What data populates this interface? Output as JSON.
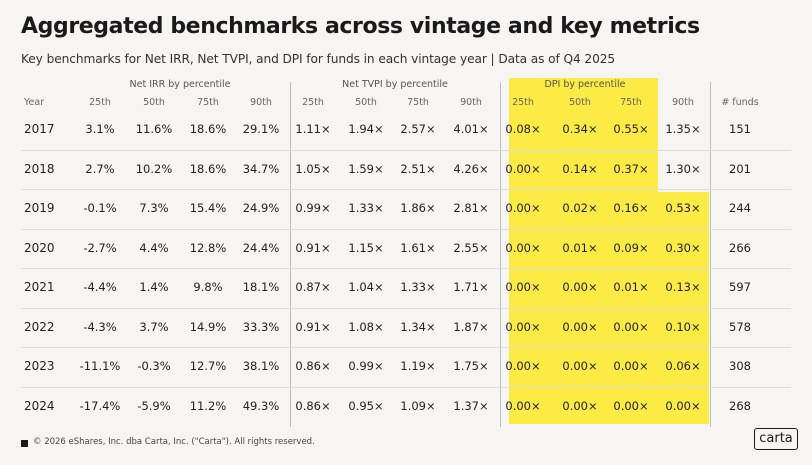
{
  "title": "Aggregated benchmarks across vintage and key metrics",
  "subtitle": "Key benchmarks for Net IRR, Net TVPI, and DPI for funds in each vintage year | Data as of Q4 2025",
  "groups": {
    "irr": "Net IRR by percentile",
    "tvpi": "Net TVPI by percentile",
    "dpi": "DPI by percentile"
  },
  "headers": [
    "Year",
    "25th",
    "50th",
    "75th",
    "90th",
    "25th",
    "50th",
    "75th",
    "90th",
    "25th",
    "50th",
    "75th",
    "90th",
    "# funds"
  ],
  "rows": [
    [
      "2017",
      "3.1%",
      "11.6%",
      "18.6%",
      "29.1%",
      "1.11×",
      "1.94×",
      "2.57×",
      "4.01×",
      "0.08×",
      "0.34×",
      "0.55×",
      "1.35×",
      "151"
    ],
    [
      "2018",
      "2.7%",
      "10.2%",
      "18.6%",
      "34.7%",
      "1.05×",
      "1.59×",
      "2.51×",
      "4.26×",
      "0.00×",
      "0.14×",
      "0.37×",
      "1.30×",
      "201"
    ],
    [
      "2019",
      "-0.1%",
      "7.3%",
      "15.4%",
      "24.9%",
      "0.99×",
      "1.33×",
      "1.86×",
      "2.81×",
      "0.00×",
      "0.02×",
      "0.16×",
      "0.53×",
      "244"
    ],
    [
      "2020",
      "-2.7%",
      "4.4%",
      "12.8%",
      "24.4%",
      "0.91×",
      "1.15×",
      "1.61×",
      "2.55×",
      "0.00×",
      "0.01×",
      "0.09×",
      "0.30×",
      "266"
    ],
    [
      "2021",
      "-4.4%",
      "1.4%",
      "9.8%",
      "18.1%",
      "0.87×",
      "1.04×",
      "1.33×",
      "1.71×",
      "0.00×",
      "0.00×",
      "0.01×",
      "0.13×",
      "597"
    ],
    [
      "2022",
      "-4.3%",
      "3.7%",
      "14.9%",
      "33.3%",
      "0.91×",
      "1.08×",
      "1.34×",
      "1.87×",
      "0.00×",
      "0.00×",
      "0.00×",
      "0.10×",
      "578"
    ],
    [
      "2023",
      "-11.1%",
      "-0.3%",
      "12.7%",
      "38.1%",
      "0.86×",
      "0.99×",
      "1.19×",
      "1.75×",
      "0.00×",
      "0.00×",
      "0.00×",
      "0.06×",
      "308"
    ],
    [
      "2024",
      "-17.4%",
      "-5.9%",
      "11.2%",
      "49.3%",
      "0.86×",
      "0.95×",
      "1.09×",
      "1.37×",
      "0.00×",
      "0.00×",
      "0.00×",
      "0.00×",
      "268"
    ]
  ],
  "highlight_color": "#fbeb44",
  "footer": "© 2026 eShares, Inc. dba Carta, Inc. (\"Carta\"). All rights reserved.",
  "logo": "carta"
}
